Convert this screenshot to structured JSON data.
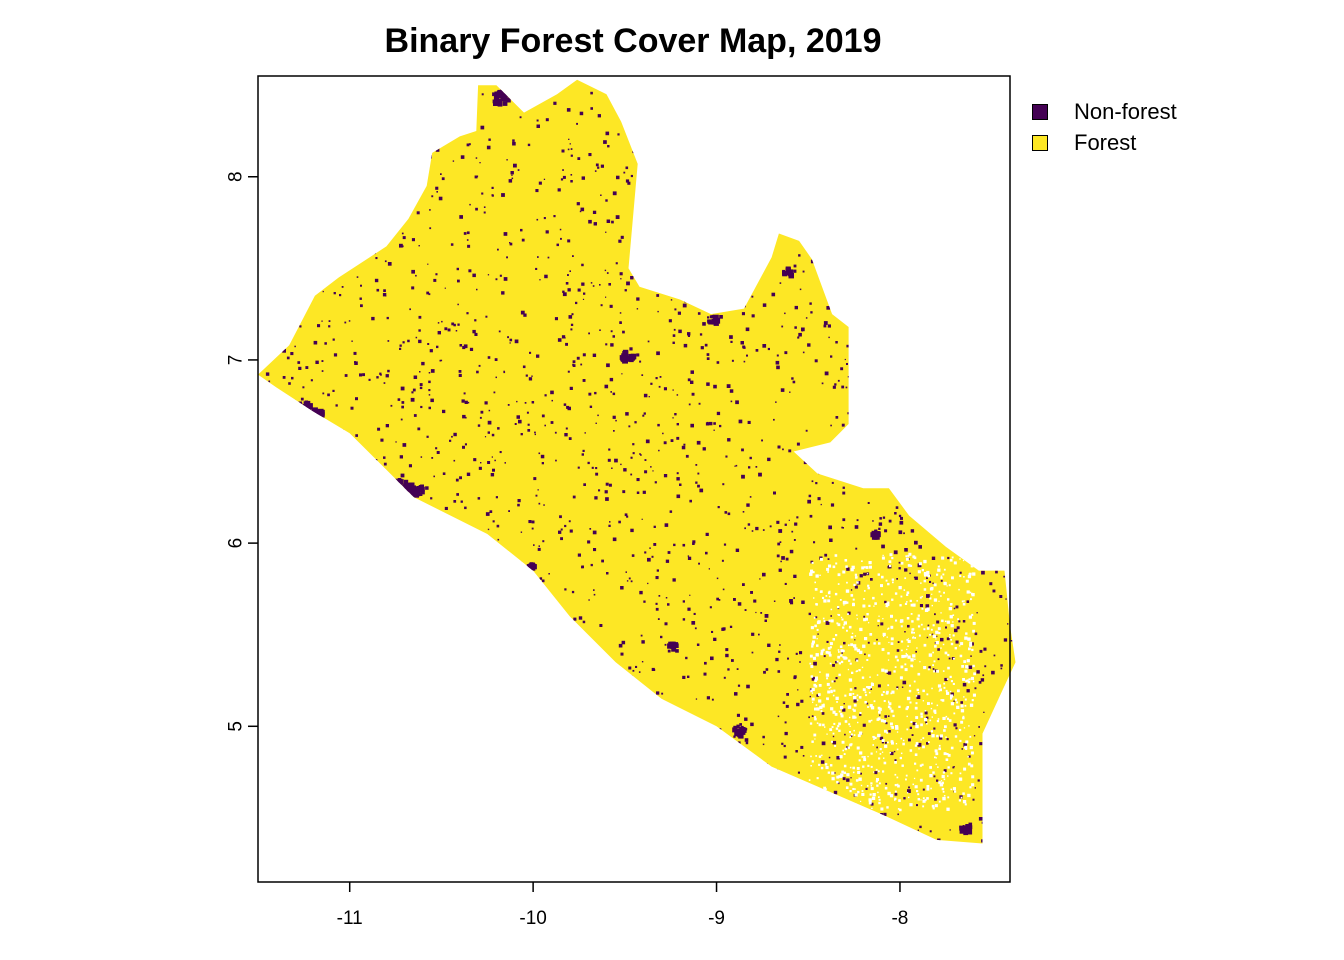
{
  "title": "Binary Forest Cover Map, 2019",
  "colors": {
    "non_forest": "#440154",
    "forest": "#fde725",
    "frame": "#000000",
    "background": "#ffffff"
  },
  "legend": {
    "items": [
      {
        "label": "Non-forest",
        "color": "#440154"
      },
      {
        "label": "Forest",
        "color": "#fde725"
      }
    ]
  },
  "axes": {
    "x": {
      "range": [
        -11.5,
        -7.4
      ],
      "ticks": [
        -11,
        -10,
        -9,
        -8
      ],
      "tick_labels": [
        "-11",
        "-10",
        "-9",
        "-8"
      ]
    },
    "y": {
      "range": [
        4.15,
        8.55
      ],
      "ticks": [
        5,
        6,
        7,
        8
      ],
      "tick_labels": [
        "5",
        "6",
        "7",
        "8"
      ]
    }
  },
  "map": {
    "region_outline": [
      [
        -11.5,
        6.92
      ],
      [
        -11.33,
        7.08
      ],
      [
        -11.19,
        7.35
      ],
      [
        -11.06,
        7.45
      ],
      [
        -10.8,
        7.62
      ],
      [
        -10.68,
        7.77
      ],
      [
        -10.58,
        7.95
      ],
      [
        -10.55,
        8.13
      ],
      [
        -10.4,
        8.22
      ],
      [
        -10.31,
        8.25
      ],
      [
        -10.3,
        8.5
      ],
      [
        -10.2,
        8.5
      ],
      [
        -10.05,
        8.35
      ],
      [
        -9.87,
        8.45
      ],
      [
        -9.76,
        8.53
      ],
      [
        -9.6,
        8.45
      ],
      [
        -9.52,
        8.3
      ],
      [
        -9.43,
        8.07
      ],
      [
        -9.48,
        7.5
      ],
      [
        -9.42,
        7.4
      ],
      [
        -9.2,
        7.33
      ],
      [
        -9.03,
        7.25
      ],
      [
        -8.85,
        7.28
      ],
      [
        -8.7,
        7.56
      ],
      [
        -8.66,
        7.69
      ],
      [
        -8.55,
        7.65
      ],
      [
        -8.48,
        7.55
      ],
      [
        -8.37,
        7.25
      ],
      [
        -8.28,
        7.18
      ],
      [
        -8.28,
        6.65
      ],
      [
        -8.38,
        6.55
      ],
      [
        -8.58,
        6.5
      ],
      [
        -8.45,
        6.38
      ],
      [
        -8.2,
        6.3
      ],
      [
        -8.06,
        6.3
      ],
      [
        -7.95,
        6.15
      ],
      [
        -7.75,
        5.98
      ],
      [
        -7.57,
        5.85
      ],
      [
        -7.43,
        5.85
      ],
      [
        -7.4,
        5.55
      ],
      [
        -7.37,
        5.35
      ],
      [
        -7.44,
        5.2
      ],
      [
        -7.55,
        4.96
      ],
      [
        -7.55,
        4.36
      ],
      [
        -7.8,
        4.38
      ],
      [
        -8.1,
        4.52
      ],
      [
        -8.7,
        4.78
      ],
      [
        -9.0,
        5.0
      ],
      [
        -9.3,
        5.15
      ],
      [
        -9.55,
        5.35
      ],
      [
        -9.8,
        5.6
      ],
      [
        -10.0,
        5.85
      ],
      [
        -10.25,
        6.05
      ],
      [
        -10.45,
        6.15
      ],
      [
        -10.65,
        6.25
      ],
      [
        -10.8,
        6.4
      ],
      [
        -11.0,
        6.6
      ],
      [
        -11.2,
        6.72
      ],
      [
        -11.4,
        6.85
      ]
    ],
    "non_forest_patches": [
      {
        "lon": -11.28,
        "lat": 6.75,
        "r": 0.06
      },
      {
        "lon": -11.2,
        "lat": 6.71,
        "r": 0.04
      },
      {
        "lon": -10.72,
        "lat": 6.32,
        "r": 0.05
      },
      {
        "lon": -10.8,
        "lat": 6.33,
        "r": 0.035
      },
      {
        "lon": -10.64,
        "lat": 6.3,
        "r": 0.035
      },
      {
        "lon": -10.19,
        "lat": 8.44,
        "r": 0.045
      },
      {
        "lon": -9.5,
        "lat": 7.03,
        "r": 0.035
      },
      {
        "lon": -9.03,
        "lat": 7.23,
        "r": 0.025
      },
      {
        "lon": -8.62,
        "lat": 7.49,
        "r": 0.025
      },
      {
        "lon": -8.14,
        "lat": 6.06,
        "r": 0.022
      },
      {
        "lon": -8.88,
        "lat": 4.99,
        "r": 0.035
      },
      {
        "lon": -7.65,
        "lat": 4.45,
        "r": 0.03
      },
      {
        "lon": -10.02,
        "lat": 5.88,
        "r": 0.02
      },
      {
        "lon": -9.25,
        "lat": 5.45,
        "r": 0.02
      }
    ],
    "gap_region": {
      "lon": [
        -8.5,
        -7.6
      ],
      "lat": [
        4.55,
        5.95
      ]
    }
  }
}
